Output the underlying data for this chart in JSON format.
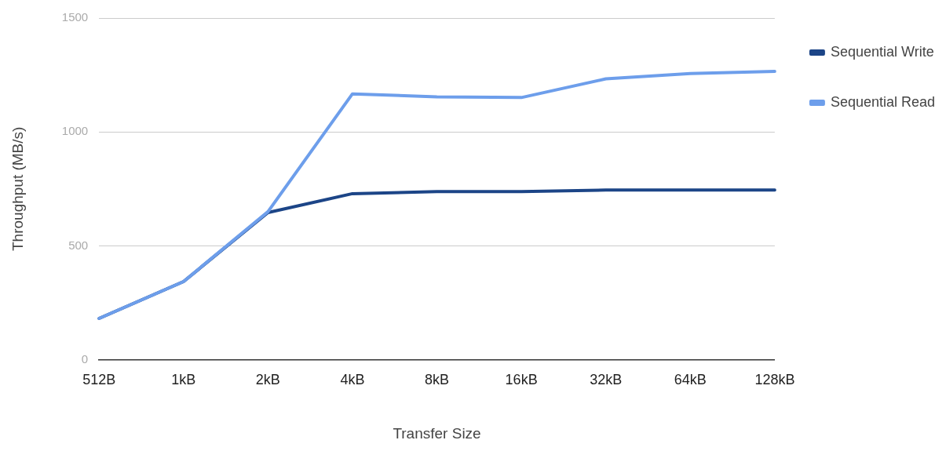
{
  "chart_data": {
    "type": "line",
    "xlabel": "Transfer Size",
    "ylabel": "Throughput (MB/s)",
    "categories": [
      "512B",
      "1kB",
      "2kB",
      "4kB",
      "8kB",
      "16kB",
      "32kB",
      "64kB",
      "128kB"
    ],
    "series": [
      {
        "name": "Sequential Write",
        "color": "#1c4587",
        "values": [
          181,
          343,
          646,
          729,
          738,
          738,
          745,
          745,
          745
        ]
      },
      {
        "name": "Sequential Read",
        "color": "#6d9eeb",
        "values": [
          181,
          343,
          650,
          1167,
          1154,
          1151,
          1233,
          1256,
          1266
        ]
      }
    ],
    "ylim": [
      0,
      1500
    ],
    "yticks": [
      0,
      500,
      1000,
      1500
    ],
    "grid": "y",
    "legend": "top right",
    "marker": "none",
    "line_style": "solid"
  }
}
